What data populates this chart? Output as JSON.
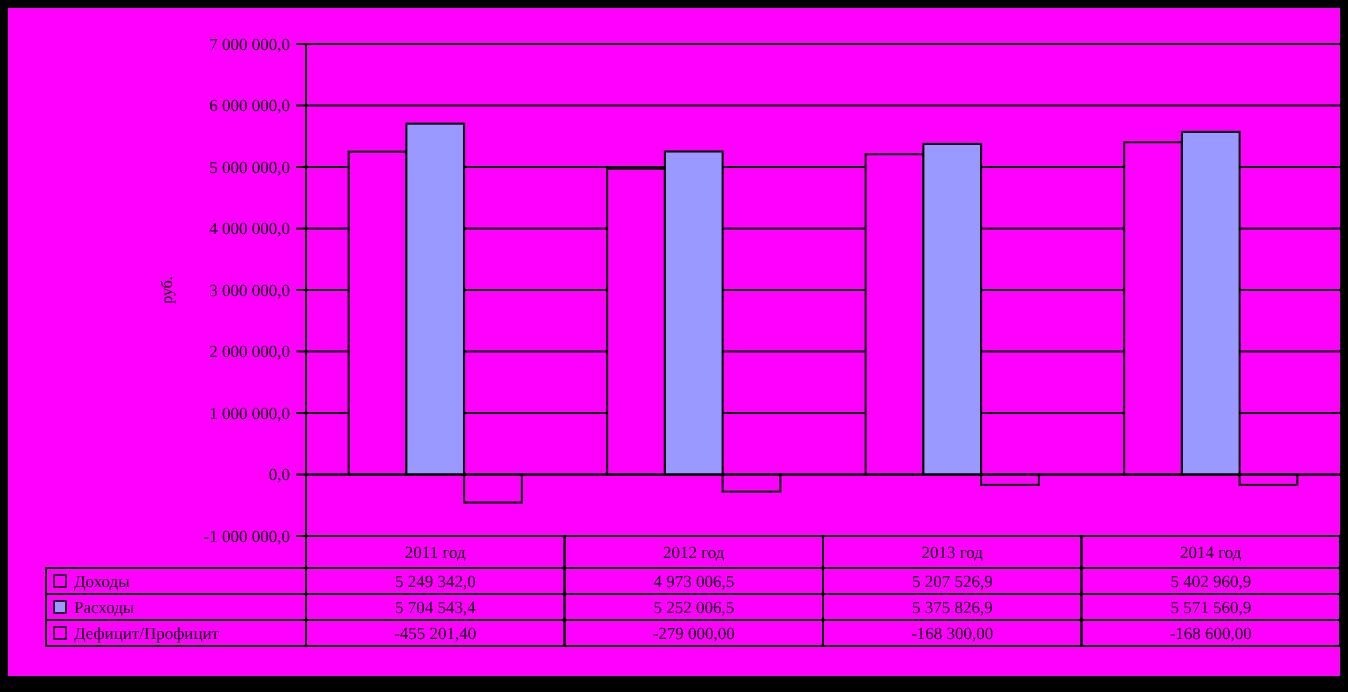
{
  "chart_data": {
    "type": "bar",
    "ylabel": "руб.",
    "categories": [
      "2011 год",
      "2012 год",
      "2013 год",
      "2014 год"
    ],
    "series": [
      {
        "name": "Доходы",
        "color": "#ff00ff",
        "values": [
          5249342.0,
          4973006.5,
          5207526.9,
          5402960.9
        ],
        "value_labels": [
          "5 249 342,0",
          "4 973 006,5",
          "5 207 526,9",
          "5 402 960,9"
        ]
      },
      {
        "name": "Расходы",
        "color": "#9999ff",
        "values": [
          5704543.4,
          5252006.5,
          5375826.9,
          5571560.9
        ],
        "value_labels": [
          "5 704 543,4",
          "5 252 006,5",
          "5 375 826,9",
          "5 571 560,9"
        ]
      },
      {
        "name": "Дефицит/Профицит",
        "color": "#ff00ff",
        "values": [
          -455201.4,
          -279000,
          -168300,
          -168600
        ],
        "value_labels": [
          "-455 201,40",
          "-279 000,00",
          "-168 300,00",
          "-168 600,00"
        ]
      }
    ],
    "ylim": [
      -1000000,
      7000000
    ],
    "yticks": [
      {
        "value": -1000000,
        "label": "-1 000 000,0"
      },
      {
        "value": 0,
        "label": "0,0"
      },
      {
        "value": 1000000,
        "label": "1 000 000,0"
      },
      {
        "value": 2000000,
        "label": "2 000 000,0"
      },
      {
        "value": 3000000,
        "label": "3 000 000,0"
      },
      {
        "value": 4000000,
        "label": "4 000 000,0"
      },
      {
        "value": 5000000,
        "label": "5 000 000,0"
      },
      {
        "value": 6000000,
        "label": "6 000 000,0"
      },
      {
        "value": 7000000,
        "label": "7 000 000,0"
      }
    ],
    "grid": "y",
    "legend": "bottom"
  }
}
